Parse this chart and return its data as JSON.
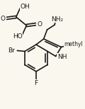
{
  "bg_color": "#faf7ee",
  "line_color": "#1a1a1a",
  "lw": 1.2,
  "figsize": [
    1.2,
    1.54
  ],
  "dpi": 100,
  "NH2": "NH₂",
  "NH": "NH",
  "Br": "Br",
  "F": "F",
  "O": "O",
  "OH": "OH",
  "HO": "HO",
  "methyl": "methyl"
}
